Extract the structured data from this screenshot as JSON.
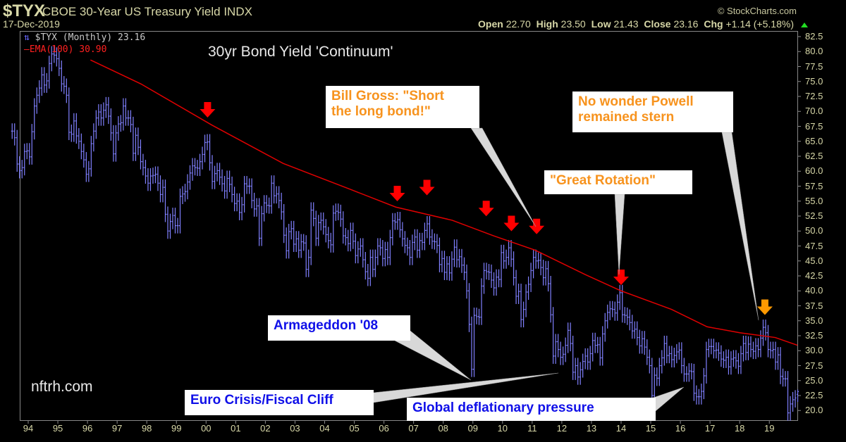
{
  "header": {
    "symbol": "$TYX",
    "name": "CBOE 30-Year US Treasury Yield INDX",
    "date": "17-Dec-2019",
    "copyright": "© StockCharts.com",
    "open_label": "Open",
    "open": "22.70",
    "high_label": "High",
    "high": "23.50",
    "low_label": "Low",
    "low": "21.43",
    "close_label": "Close",
    "close": "23.16",
    "chg_label": "Chg",
    "chg": "+1.14 (+5.18%)",
    "up_color": "#22dd22"
  },
  "legend": {
    "price": "$TYX (Monthly) 23.16",
    "ema": "EMA(100) 30.90"
  },
  "chart_title": "30yr Bond Yield 'Continuum'",
  "watermark": "nftrh.com",
  "annotations": {
    "bill_gross": "Bill Gross: \"Short the long bond!\"",
    "bill_gross_l1": "Bill Gross: \"Short",
    "bill_gross_l2": "the long bond!\"",
    "powell_l1": "No wonder Powell",
    "powell_l2": "remained stern",
    "great_rotation": "\"Great Rotation\"",
    "armageddon": "Armageddon '08",
    "euro": "Euro Crisis/Fiscal Cliff",
    "global": "Global deflationary pressure"
  },
  "chart_data": {
    "type": "ohlc-bar",
    "interval": "monthly",
    "start": "1993-06",
    "colors": {
      "bars": "#8080ff",
      "ema": "#e00000",
      "arrow": "#ff0000",
      "arrow_last": "#ff9900",
      "background": "#000000"
    },
    "grid": false,
    "ylim": [
      20,
      82.5
    ],
    "y_ticks": [
      "20.0",
      "22.5",
      "25.0",
      "27.5",
      "30.0",
      "32.5",
      "35.0",
      "37.5",
      "40.0",
      "42.5",
      "45.0",
      "47.5",
      "50.0",
      "52.5",
      "55.0",
      "57.5",
      "60.0",
      "62.5",
      "65.0",
      "67.5",
      "70.0",
      "72.5",
      "75.0",
      "77.5",
      "80.0",
      "82.5"
    ],
    "x_ticks": [
      "94",
      "95",
      "96",
      "97",
      "98",
      "99",
      "00",
      "01",
      "02",
      "03",
      "04",
      "05",
      "06",
      "07",
      "08",
      "09",
      "10",
      "11",
      "12",
      "13",
      "14",
      "15",
      "16",
      "17",
      "18",
      "19"
    ],
    "last_bar": {
      "open": 22.7,
      "high": 23.5,
      "low": 21.43,
      "close": 23.16
    },
    "close": [
      66.7,
      65.6,
      61.2,
      60.1,
      60.6,
      63.3,
      63.4,
      62.4,
      66.6,
      70.9,
      72.7,
      73.9,
      76.1,
      74.4,
      75.1,
      78.0,
      79.6,
      79.4,
      78.8,
      77.2,
      74.6,
      74.2,
      72.7,
      66.5,
      66.2,
      68.4,
      65.9,
      65.0,
      63.3,
      61.9,
      59.5,
      60.4,
      64.6,
      66.7,
      68.9,
      69.9,
      68.9,
      70.2,
      71.1,
      69.2,
      66.4,
      62.9,
      66.4,
      67.9,
      68.1,
      70.9,
      68.9,
      68.9,
      67.8,
      63.0,
      66.0,
      64.0,
      61.6,
      60.6,
      59.2,
      58.0,
      59.2,
      59.3,
      59.5,
      58.0,
      56.1,
      57.3,
      52.8,
      50.0,
      51.6,
      52.6,
      50.9,
      50.9,
      55.8,
      56.2,
      56.6,
      58.2,
      59.7,
      60.9,
      60.6,
      60.5,
      61.6,
      62.8,
      64.8,
      64.9,
      61.4,
      58.3,
      59.6,
      60.1,
      59.0,
      57.9,
      56.7,
      58.8,
      57.8,
      56.1,
      54.6,
      55.0,
      53.1,
      54.4,
      57.9,
      57.5,
      57.5,
      55.1,
      53.7,
      54.2,
      48.8,
      52.9,
      54.7,
      54.3,
      54.2,
      58.0,
      55.9,
      56.2,
      55.1,
      53.2,
      49.3,
      46.7,
      49.9,
      50.4,
      47.8,
      48.7,
      46.8,
      48.2,
      48.0,
      43.6,
      45.6,
      53.5,
      52.1,
      48.8,
      51.4,
      51.8,
      50.7,
      49.4,
      48.4,
      47.7,
      53.0,
      53.3,
      53.1,
      52.0,
      49.2,
      48.9,
      47.9,
      50.1,
      48.3,
      45.9,
      47.0,
      47.5,
      45.2,
      43.2,
      42.1,
      45.6,
      43.6,
      45.6,
      47.5,
      47.2,
      45.4,
      46.9,
      45.6,
      48.9,
      51.7,
      51.5,
      51.9,
      50.2,
      48.7,
      47.6,
      47.2,
      45.6,
      48.1,
      49.0,
      46.8,
      48.4,
      48.1,
      50.1,
      51.2,
      49.0,
      48.3,
      48.2,
      47.6,
      44.4,
      45.4,
      43.1,
      44.5,
      43.0,
      45.3,
      47.3,
      45.2,
      45.7,
      44.3,
      43.1,
      40.0,
      34.4,
      26.9,
      35.9,
      35.7,
      35.6,
      40.8,
      43.4,
      43.2,
      43.1,
      41.8,
      40.5,
      42.3,
      41.9,
      46.4,
      45.0,
      45.6,
      47.2,
      45.3,
      42.2,
      39.1,
      39.9,
      35.2,
      36.9,
      39.8,
      41.1,
      43.4,
      45.6,
      45.0,
      45.1,
      43.9,
      42.2,
      43.7,
      41.2,
      36.0,
      29.1,
      31.5,
      30.2,
      28.9,
      29.4,
      30.9,
      33.4,
      31.2,
      26.4,
      27.5,
      25.6,
      26.8,
      28.2,
      29.1,
      28.1,
      29.5,
      31.7,
      30.9,
      31.0,
      28.8,
      32.8,
      35.0,
      36.4,
      37.0,
      36.9,
      36.3,
      38.1,
      39.7,
      36.0,
      35.9,
      35.6,
      34.7,
      33.3,
      33.6,
      32.2,
      30.8,
      32.0,
      30.6,
      28.9,
      27.5,
      22.5,
      25.9,
      25.4,
      27.5,
      28.8,
      31.2,
      29.2,
      29.5,
      28.5,
      29.2,
      29.8,
      30.1,
      27.5,
      26.1,
      26.1,
      26.6,
      26.5,
      22.9,
      22.3,
      22.3,
      23.2,
      25.8,
      30.2,
      30.7,
      30.7,
      30.0,
      30.1,
      29.6,
      28.6,
      28.4,
      28.9,
      27.3,
      28.6,
      28.8,
      28.3,
      27.4,
      29.5,
      31.2,
      29.7,
      31.1,
      30.2,
      29.9,
      30.8,
      30.2,
      32.1,
      33.9,
      33.0,
      30.2,
      30.0,
      30.2,
      28.1,
      29.3,
      25.7,
      25.3,
      25.3,
      19.6,
      21.1,
      21.8,
      22.1,
      23.16
    ],
    "ema100": [
      [
        1996.1,
        78.6
      ],
      [
        1997.8,
        74.6
      ],
      [
        2000.2,
        67.7
      ],
      [
        2002.6,
        61.3
      ],
      [
        2004.9,
        56.9
      ],
      [
        2006.4,
        54.0
      ],
      [
        2008.3,
        51.8
      ],
      [
        2009.7,
        49.2
      ],
      [
        2011.1,
        46.8
      ],
      [
        2012.8,
        42.7
      ],
      [
        2014.0,
        40.0
      ],
      [
        2015.7,
        36.9
      ],
      [
        2016.9,
        34.0
      ],
      [
        2018.0,
        33.0
      ],
      [
        2019.2,
        32.2
      ],
      [
        2019.95,
        30.9
      ]
    ],
    "arrows": [
      {
        "date": 2000.05,
        "value": 68.5,
        "color": "#ff0000"
      },
      {
        "date": 2006.45,
        "value": 54.5,
        "color": "#ff0000"
      },
      {
        "date": 2007.45,
        "value": 55.5,
        "color": "#ff0000"
      },
      {
        "date": 2009.45,
        "value": 52.0,
        "color": "#ff0000"
      },
      {
        "date": 2010.3,
        "value": 49.5,
        "color": "#ff0000"
      },
      {
        "date": 2011.15,
        "value": 49.0,
        "color": "#ff0000"
      },
      {
        "date": 2014.0,
        "value": 40.5,
        "color": "#ff0000"
      },
      {
        "date": 2018.85,
        "value": 35.5,
        "color": "#ff9900"
      }
    ]
  }
}
